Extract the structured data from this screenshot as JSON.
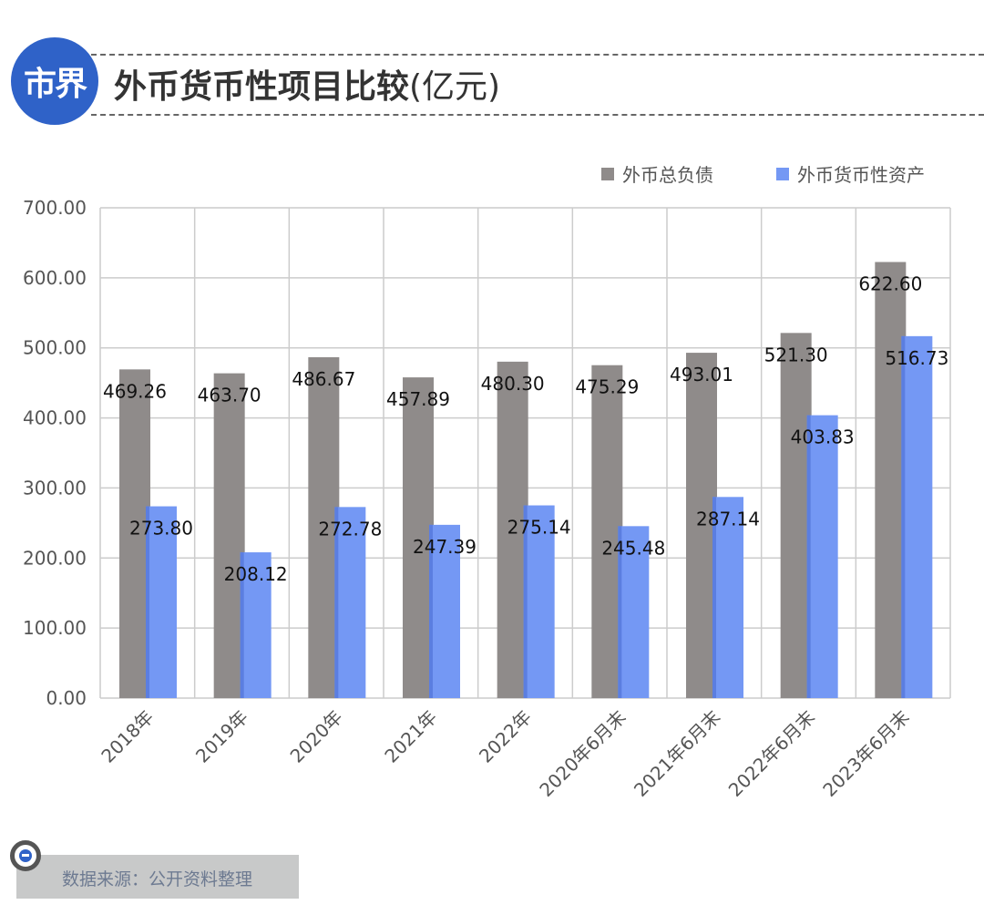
{
  "header": {
    "logo_text": "市界",
    "title": "外币货币性项目比较",
    "unit": "(亿元)"
  },
  "source": {
    "text": "数据来源：公开资料整理"
  },
  "chart_data": {
    "type": "bar",
    "title": "外币货币性项目比较(亿元)",
    "categories": [
      "2018年",
      "2019年",
      "2020年",
      "2021年",
      "2022年",
      "2020年6月末",
      "2021年6月末",
      "2022年6月末",
      "2023年6月末"
    ],
    "series": [
      {
        "name": "外币总负债",
        "color": "#8f8b8a",
        "values": [
          469.26,
          463.7,
          486.67,
          457.89,
          480.3,
          475.29,
          493.01,
          521.3,
          622.6
        ]
      },
      {
        "name": "外币货币性资产",
        "color": "#7498f4",
        "values": [
          273.8,
          208.12,
          272.78,
          247.39,
          275.14,
          245.48,
          287.14,
          403.83,
          516.73
        ]
      }
    ],
    "data_labels": [
      [
        "469.26",
        "463.70",
        "486.67",
        "457.89",
        "480.30",
        "475.29",
        "493.01",
        "521.30",
        "622.60"
      ],
      [
        "273.80",
        "208.12",
        "272.78",
        "247.39",
        "275.14",
        "245.48",
        "287.14",
        "403.83",
        "516.73"
      ]
    ],
    "yticks": [
      "0.00",
      "100.00",
      "200.00",
      "300.00",
      "400.00",
      "500.00",
      "600.00",
      "700.00"
    ],
    "ylim": [
      0,
      700
    ],
    "grid": true,
    "legend": "top-right",
    "xlabel": "",
    "ylabel": ""
  }
}
